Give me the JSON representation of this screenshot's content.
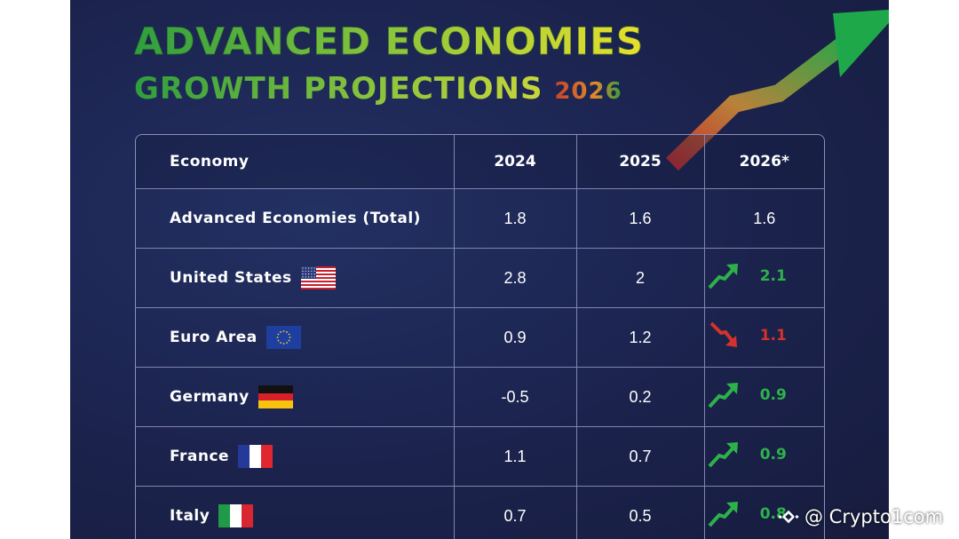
{
  "poster": {
    "title": "ADVANCED ECONOMIES",
    "subtitle_main": "GROWTH PROJECTIONS",
    "subtitle_year": "2026"
  },
  "chart_data": {
    "type": "table",
    "title": "ADVANCED ECONOMIES GROWTH PROJECTIONS 2026",
    "columns": [
      "Economy",
      "2024",
      "2025",
      "2026*"
    ],
    "rows": [
      {
        "economy": "Advanced Economies (Total)",
        "y2024": "1.8",
        "y2025": "1.6",
        "y2026": "1.6",
        "trend": "none",
        "flag": ""
      },
      {
        "economy": "United States",
        "y2024": "2.8",
        "y2025": "2",
        "y2026": "2.1",
        "trend": "up",
        "flag": "us-flag"
      },
      {
        "economy": "Euro Area",
        "y2024": "0.9",
        "y2025": "1.2",
        "y2026": "1.1",
        "trend": "down",
        "flag": "eu-flag"
      },
      {
        "economy": "Germany",
        "y2024": "-0.5",
        "y2025": "0.2",
        "y2026": "0.9",
        "trend": "up",
        "flag": "germany-flag"
      },
      {
        "economy": "France",
        "y2024": "1.1",
        "y2025": "0.7",
        "y2026": "0.9",
        "trend": "up",
        "flag": "france-flag"
      },
      {
        "economy": "Italy",
        "y2024": "0.7",
        "y2025": "0.5",
        "y2026": "0.8",
        "trend": "up",
        "flag": "italy-flag"
      }
    ]
  },
  "colors": {
    "up": "#2db24a",
    "down": "#d4322c",
    "background": "#1b234d"
  },
  "watermark": {
    "text": "@ Crypto1com",
    "icon": "binance-logo-icon"
  }
}
